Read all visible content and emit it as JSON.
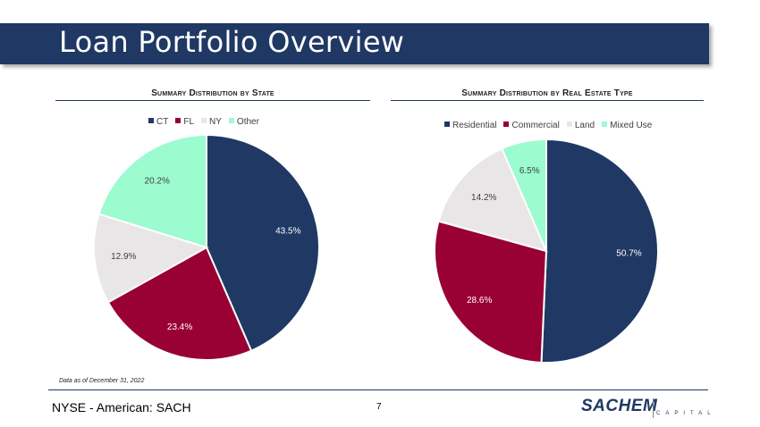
{
  "header": {
    "title": "Loan Portfolio Overview"
  },
  "colors": {
    "navy": "#1f3864",
    "crimson": "#990033",
    "light_gray": "#e8e6e6",
    "mint": "#9cfbcf"
  },
  "chart_data": [
    {
      "type": "pie",
      "title": "Summary Distribution by State",
      "categories": [
        "CT",
        "FL",
        "NY",
        "Other"
      ],
      "values": [
        43.5,
        23.4,
        12.9,
        20.2
      ],
      "labels": [
        "43.5%",
        "23.4%",
        "12.9%",
        "20.2%"
      ],
      "colors": [
        "#1f3864",
        "#990033",
        "#e8e6e6",
        "#9cfbcf"
      ],
      "legend": "top",
      "start": "12 o'clock, clockwise"
    },
    {
      "type": "pie",
      "title": "Summary Distribution by Real Estate Type",
      "categories": [
        "Residential",
        "Commercial",
        "Land",
        "Mixed Use"
      ],
      "values": [
        50.7,
        28.6,
        14.2,
        6.5
      ],
      "labels": [
        "50.7%",
        "28.6%",
        "14.2%",
        "6.5%"
      ],
      "colors": [
        "#1f3864",
        "#990033",
        "#e8e6e6",
        "#9cfbcf"
      ],
      "legend": "top",
      "start": "12 o'clock, clockwise"
    }
  ],
  "footer": {
    "note": "Data as of December 31, 2022",
    "exchange": "NYSE - American: SACH",
    "page_number": "7",
    "logo_word": "SACHEM",
    "logo_sub": "CAPITAL"
  }
}
